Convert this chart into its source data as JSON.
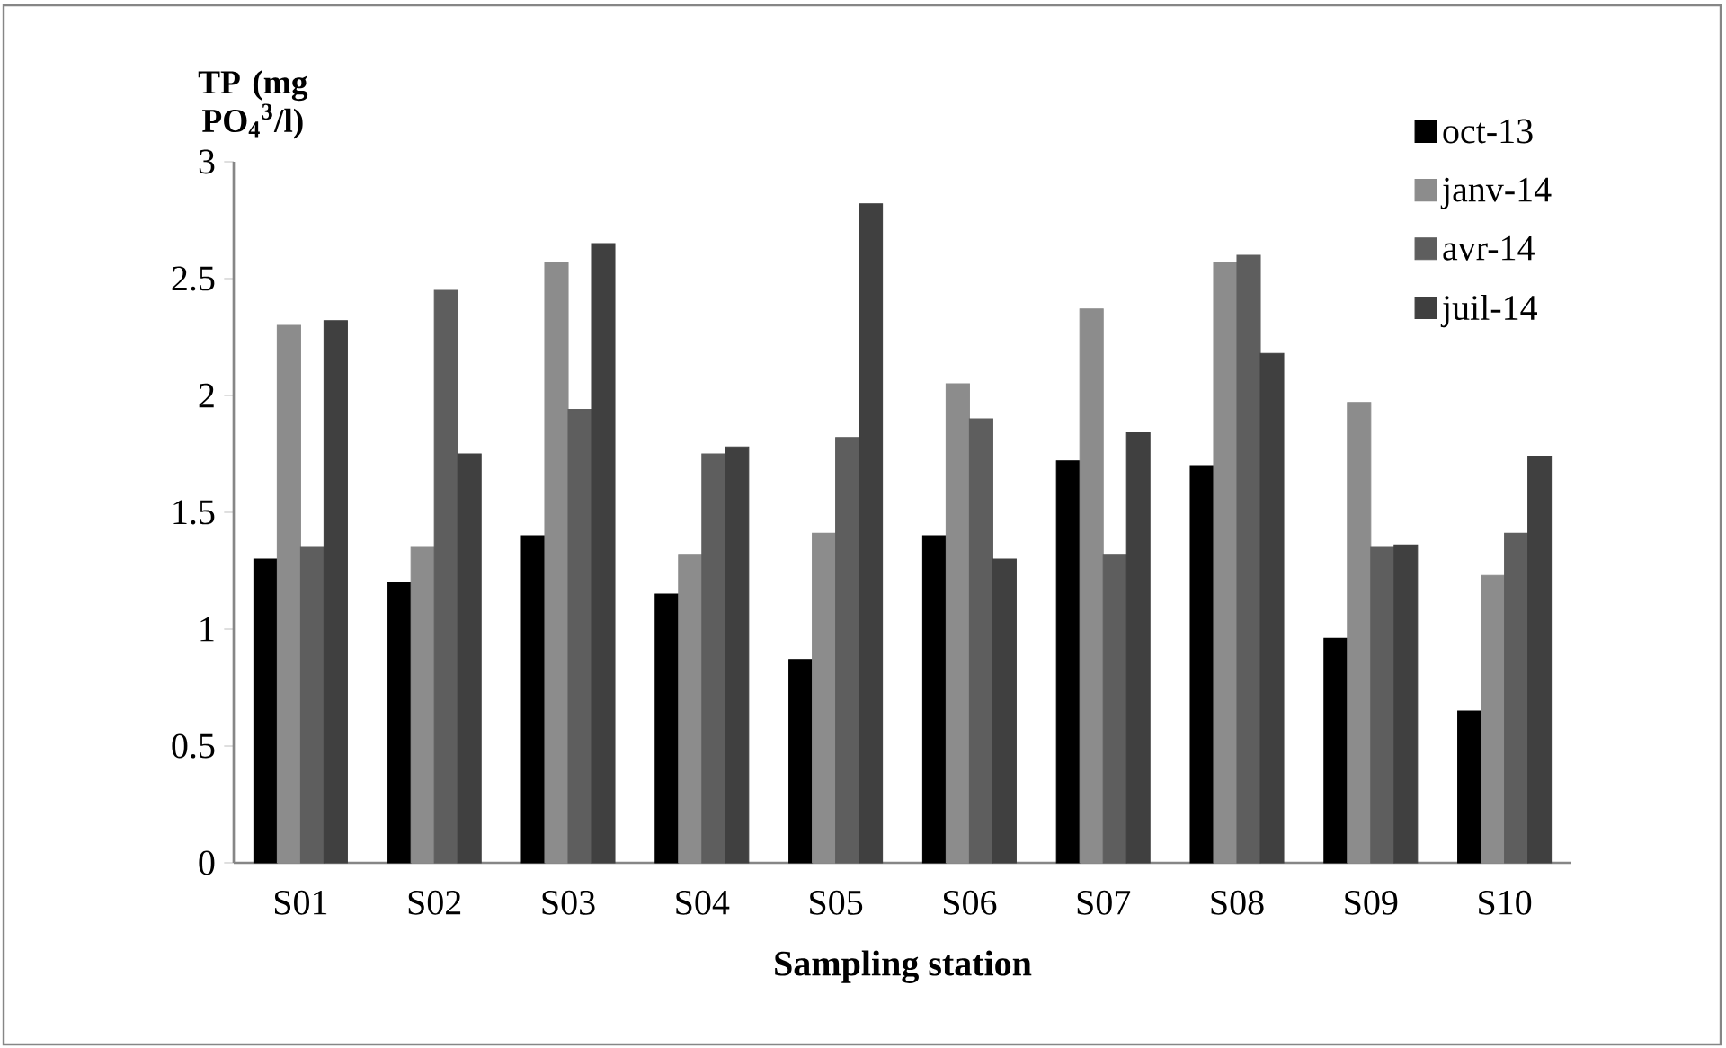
{
  "chart_data": {
    "type": "bar",
    "xlabel": "Sampling station",
    "ylabel": "TP (mg PO$_{4}$$^{3}$/l)",
    "categories": [
      "S01",
      "S02",
      "S03",
      "S04",
      "S05",
      "S06",
      "S07",
      "S08",
      "S09",
      "S10"
    ],
    "series": [
      {
        "name": "oct-13",
        "color": "#000000",
        "values": [
          1.3,
          1.2,
          1.4,
          1.15,
          0.87,
          1.4,
          1.72,
          1.7,
          0.96,
          0.65
        ]
      },
      {
        "name": "janv-14",
        "color": "#8c8c8c",
        "values": [
          2.3,
          1.35,
          2.57,
          1.32,
          1.41,
          2.05,
          2.37,
          2.57,
          1.97,
          1.23
        ]
      },
      {
        "name": "avr-14",
        "color": "#5e5e5e",
        "values": [
          1.35,
          2.45,
          1.94,
          1.75,
          1.82,
          1.9,
          1.32,
          2.6,
          1.35,
          1.41
        ]
      },
      {
        "name": "juil-14",
        "color": "#404040",
        "values": [
          2.32,
          1.75,
          2.65,
          1.78,
          2.82,
          1.3,
          1.84,
          2.18,
          1.36,
          1.74
        ]
      }
    ],
    "ylim": [
      0,
      3
    ],
    "yticks": [
      0,
      0.5,
      1,
      1.5,
      2,
      2.5,
      3
    ],
    "legend": "top right",
    "grid": false
  }
}
